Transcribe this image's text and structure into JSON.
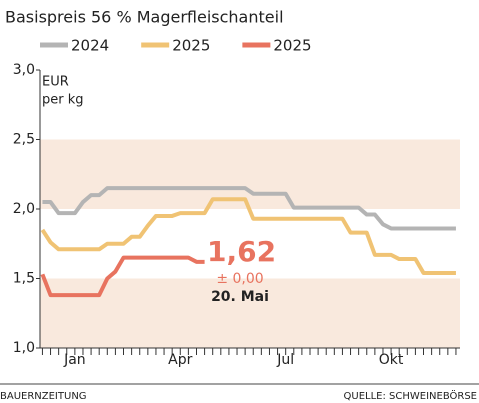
{
  "chart_data": {
    "type": "line",
    "title": "Basispreis 56 % Magerfleischanteil",
    "y_unit": [
      "EUR",
      "per kg"
    ],
    "x": [
      0,
      1,
      2,
      3,
      4,
      5,
      6,
      7,
      8,
      9,
      10,
      11,
      12,
      13,
      14,
      15,
      16,
      17,
      18,
      19,
      20,
      21,
      22,
      23,
      24,
      25,
      26,
      27,
      28,
      29,
      30,
      31,
      32,
      33,
      34,
      35,
      36,
      37,
      38,
      39,
      40,
      41,
      42,
      43,
      44,
      45,
      46,
      47,
      48,
      49,
      50,
      51
    ],
    "xlim": [
      -0.3,
      51.5
    ],
    "xticks": [
      {
        "value": 4,
        "label": "Jan"
      },
      {
        "value": 17,
        "label": "Apr"
      },
      {
        "value": 30,
        "label": "Jul"
      },
      {
        "value": 43,
        "label": "Okt"
      }
    ],
    "ylim": [
      1.0,
      3.0
    ],
    "yticks": [
      {
        "value": 1.0,
        "label": "1,0"
      },
      {
        "value": 1.5,
        "label": "1,5"
      },
      {
        "value": 2.0,
        "label": "2,0"
      },
      {
        "value": 2.5,
        "label": "2,5"
      },
      {
        "value": 3.0,
        "label": "3,0"
      }
    ],
    "band_color": "#f9e9dd",
    "series": [
      {
        "name": "2024",
        "color": "#b4b4b4",
        "values": [
          2.05,
          2.05,
          1.97,
          1.97,
          1.97,
          2.05,
          2.1,
          2.1,
          2.15,
          2.15,
          2.15,
          2.15,
          2.15,
          2.15,
          2.15,
          2.15,
          2.15,
          2.15,
          2.15,
          2.15,
          2.15,
          2.15,
          2.15,
          2.15,
          2.15,
          2.15,
          2.11,
          2.11,
          2.11,
          2.11,
          2.11,
          2.01,
          2.01,
          2.01,
          2.01,
          2.01,
          2.01,
          2.01,
          2.01,
          2.01,
          1.96,
          1.96,
          1.89,
          1.86,
          1.86,
          1.86,
          1.86,
          1.86,
          1.86,
          1.86,
          1.86,
          1.86
        ]
      },
      {
        "name": "2025",
        "color": "#f0c374",
        "values": [
          1.85,
          1.76,
          1.71,
          1.71,
          1.71,
          1.71,
          1.71,
          1.71,
          1.75,
          1.75,
          1.75,
          1.8,
          1.8,
          1.88,
          1.95,
          1.95,
          1.95,
          1.97,
          1.97,
          1.97,
          1.97,
          2.07,
          2.07,
          2.07,
          2.07,
          2.07,
          1.93,
          1.93,
          1.93,
          1.93,
          1.93,
          1.93,
          1.93,
          1.93,
          1.93,
          1.93,
          1.93,
          1.93,
          1.83,
          1.83,
          1.83,
          1.67,
          1.67,
          1.67,
          1.64,
          1.64,
          1.64,
          1.54,
          1.54,
          1.54,
          1.54,
          1.54
        ]
      },
      {
        "name": "2025",
        "color": "#e8735f",
        "values": [
          1.53,
          1.38,
          1.38,
          1.38,
          1.38,
          1.38,
          1.38,
          1.38,
          1.5,
          1.55,
          1.65,
          1.65,
          1.65,
          1.65,
          1.65,
          1.65,
          1.65,
          1.65,
          1.65,
          1.62,
          1.62,
          null,
          null,
          null,
          null,
          null,
          null,
          null,
          null,
          null,
          null,
          null,
          null,
          null,
          null,
          null,
          null,
          null,
          null,
          null,
          null,
          null,
          null,
          null,
          null,
          null,
          null,
          null,
          null,
          null,
          null,
          null
        ]
      }
    ],
    "annotation": {
      "value": "1,62",
      "change": "± 0,00",
      "date": "20. Mai"
    },
    "footer": {
      "left": "BAUERNZEITUNG",
      "right": "QUELLE: SCHWEINEBÖRSE"
    }
  }
}
